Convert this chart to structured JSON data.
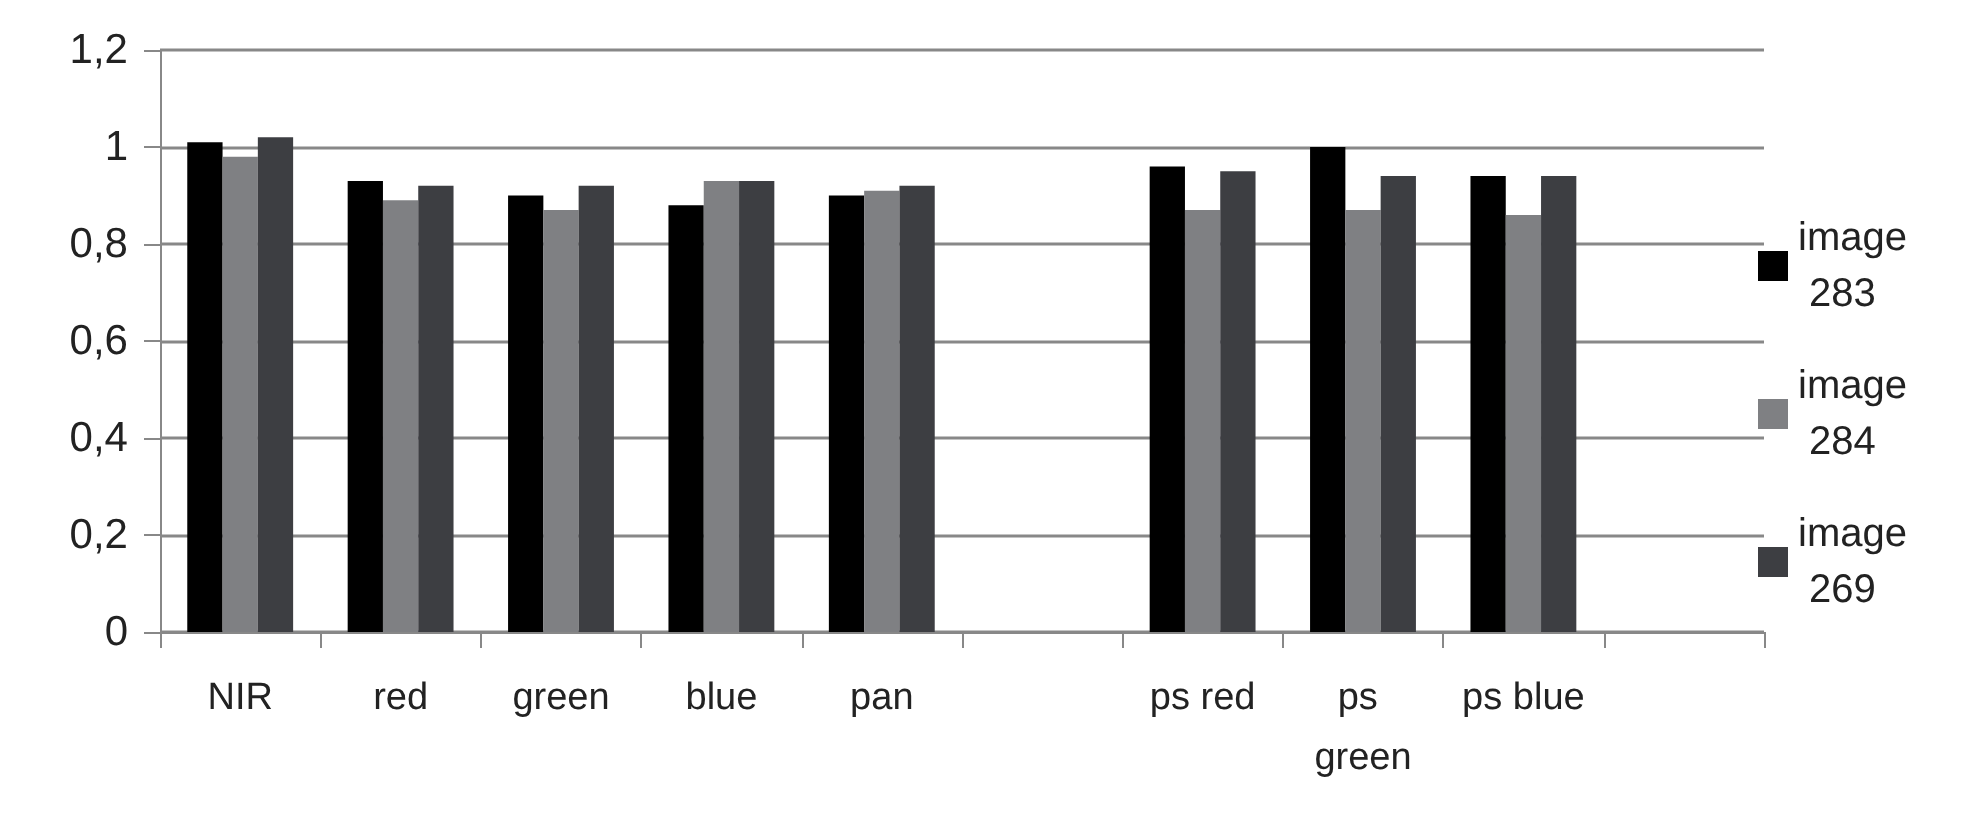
{
  "chart_data": {
    "type": "bar",
    "categories": [
      "NIR",
      "red",
      "green",
      "blue",
      "pan",
      null,
      "ps red",
      "ps green",
      "ps blue",
      null
    ],
    "series": [
      {
        "name": "image 283",
        "color": "#000000",
        "values": [
          1.01,
          0.93,
          0.9,
          0.88,
          0.9,
          null,
          0.96,
          1.0,
          0.94,
          null
        ]
      },
      {
        "name": "image 284",
        "color": "#7f8083",
        "values": [
          0.98,
          0.89,
          0.87,
          0.93,
          0.91,
          null,
          0.87,
          0.87,
          0.86,
          null
        ]
      },
      {
        "name": "image 269",
        "color": "#3d3e42",
        "values": [
          1.02,
          0.92,
          0.92,
          0.93,
          0.92,
          null,
          0.95,
          0.94,
          0.94,
          null
        ]
      }
    ],
    "ylim": [
      0,
      1.2
    ],
    "yticks": [
      {
        "value": 0,
        "label": "0"
      },
      {
        "value": 0.2,
        "label": "0,2"
      },
      {
        "value": 0.4,
        "label": "0,4"
      },
      {
        "value": 0.6,
        "label": "0,6"
      },
      {
        "value": 0.8,
        "label": "0,8"
      },
      {
        "value": 1,
        "label": "1"
      },
      {
        "value": 1.2,
        "label": "1,2"
      }
    ],
    "grid": "y",
    "legend": "right"
  }
}
